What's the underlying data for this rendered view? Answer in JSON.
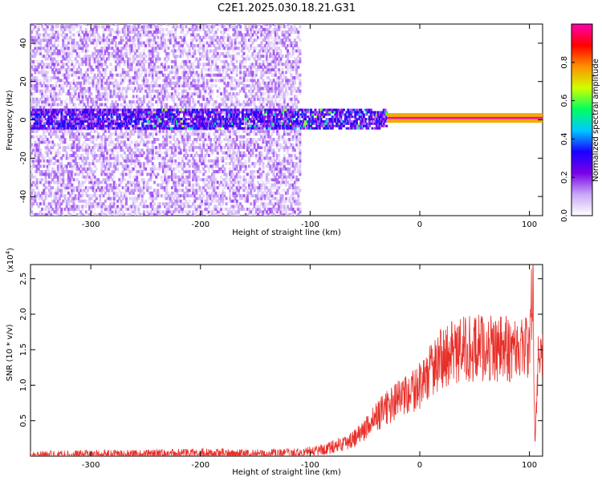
{
  "title": "C2E1.2025.030.18.21.G31",
  "chart_data": [
    {
      "type": "heatmap",
      "xlabel": "Height of straight line (km)",
      "ylabel": "Frequency (Hz)",
      "xlim": [
        -355,
        112
      ],
      "ylim": [
        -50,
        50
      ],
      "x_ticks": [
        -300,
        -200,
        -100,
        0,
        100
      ],
      "y_ticks": [
        -40,
        -20,
        0,
        20,
        40
      ],
      "colorbar": {
        "label": "Normalized spectral amplitude",
        "range": [
          0,
          1
        ],
        "ticks": [
          0.0,
          0.2,
          0.4,
          0.6,
          0.8
        ],
        "colors": [
          "#ffffff",
          "#c8a8f5",
          "#7a00e8",
          "#1a00ff",
          "#00c8ff",
          "#00ff60",
          "#d0ff00",
          "#ff9000",
          "#ff0000",
          "#ff00b0"
        ]
      },
      "features": [
        {
          "name": "noise band",
          "x_range": [
            -355,
            -110
          ],
          "freq_range": [
            -50,
            50
          ],
          "amplitude": 0.1
        },
        {
          "name": "central band",
          "x_range": [
            -355,
            -30
          ],
          "freq_range": [
            -5,
            5
          ],
          "amplitude": 0.25
        },
        {
          "name": "signal line",
          "x_range": [
            -30,
            112
          ],
          "frequency": 1,
          "amplitude": 1.0
        }
      ]
    },
    {
      "type": "line",
      "xlabel": "Height of straight line (km)",
      "ylabel": "SNR (10 * v/v)",
      "y_multiplier": "(x10",
      "y_multiplier_exp": "4",
      "y_multiplier_close": ")",
      "xlim": [
        -355,
        112
      ],
      "ylim": [
        0,
        2.7
      ],
      "x_ticks": [
        -300,
        -200,
        -100,
        0,
        100
      ],
      "y_ticks": [
        0.5,
        1.0,
        1.5,
        2.0,
        2.5
      ],
      "line_color": "#e8302a",
      "series": [
        {
          "x": [
            -355,
            -300,
            -250,
            -200,
            -150,
            -110,
            -100,
            -90,
            -80,
            -70,
            -60,
            -50,
            -40,
            -30,
            -20,
            -10,
            0,
            10,
            20,
            30,
            40,
            50,
            60,
            70,
            80,
            90,
            95,
            100,
            103,
            105,
            108,
            112
          ],
          "y": [
            0.01,
            0.02,
            0.03,
            0.04,
            0.03,
            0.04,
            0.06,
            0.09,
            0.13,
            0.18,
            0.25,
            0.38,
            0.55,
            0.68,
            0.8,
            0.85,
            1.0,
            1.2,
            1.38,
            1.45,
            1.5,
            1.52,
            1.53,
            1.52,
            1.52,
            1.52,
            1.52,
            1.5,
            2.7,
            0.25,
            1.5,
            1.48
          ]
        }
      ]
    }
  ]
}
